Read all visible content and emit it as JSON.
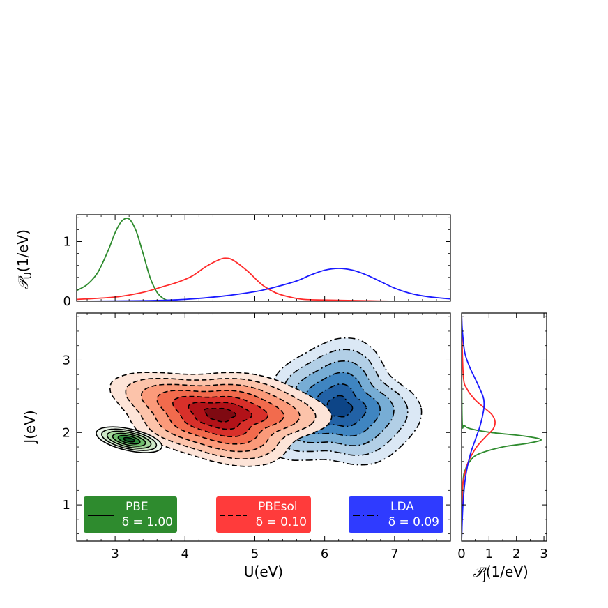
{
  "colors": {
    "PBE": "#2e8b2e",
    "PBEsol": "#ff2a2a",
    "LDA": "#1a1aff",
    "PBE_fill": [
      "#eef7ec",
      "#cfe9c8",
      "#a5d79c",
      "#6fbe6c",
      "#2f8f3e",
      "#0f5a24"
    ],
    "PBEsol_fill": [
      "#fde4d8",
      "#fcc3aa",
      "#fb9a7a",
      "#f26b4d",
      "#d8302a",
      "#b21218",
      "#7f0a12"
    ],
    "LDA_fill": [
      "#dbe8f5",
      "#b2cfe6",
      "#77add5",
      "#3f85c1",
      "#2262a6",
      "#0d4587"
    ]
  },
  "chart_data": [
    {
      "type": "line",
      "name": "top-marginal",
      "ylabel": "𝒫U(1/eV)",
      "ylabel_main": "𝒫",
      "ylabel_sub": "U",
      "ylabel_unit": "(1/eV)",
      "xlim": [
        2.45,
        7.8
      ],
      "ylim": [
        0,
        1.45
      ],
      "yticks": [
        0,
        1
      ],
      "ytick_labels": [
        "0",
        "1"
      ],
      "series": [
        {
          "name": "PBE",
          "color": "#2e8b2e",
          "x": [
            2.45,
            2.6,
            2.75,
            2.9,
            3.0,
            3.1,
            3.2,
            3.3,
            3.4,
            3.5,
            3.6,
            3.7,
            3.8,
            4.0,
            5.0,
            7.8
          ],
          "y": [
            0.18,
            0.28,
            0.48,
            0.85,
            1.15,
            1.35,
            1.38,
            1.18,
            0.8,
            0.4,
            0.15,
            0.04,
            0.01,
            0.0,
            0.0,
            0.0
          ]
        },
        {
          "name": "PBEsol",
          "color": "#ff2a2a",
          "x": [
            2.45,
            3.0,
            3.4,
            3.7,
            3.9,
            4.1,
            4.3,
            4.5,
            4.6,
            4.7,
            4.9,
            5.1,
            5.3,
            5.5,
            5.7,
            6.0,
            6.5,
            7.0,
            7.8
          ],
          "y": [
            0.03,
            0.07,
            0.15,
            0.25,
            0.32,
            0.42,
            0.58,
            0.7,
            0.72,
            0.68,
            0.5,
            0.28,
            0.14,
            0.07,
            0.03,
            0.02,
            0.01,
            0.0,
            0.0
          ]
        },
        {
          "name": "LDA",
          "color": "#1a1aff",
          "x": [
            2.45,
            3.5,
            4.0,
            4.5,
            5.0,
            5.3,
            5.6,
            5.8,
            6.0,
            6.2,
            6.4,
            6.6,
            6.8,
            7.0,
            7.2,
            7.4,
            7.6,
            7.8
          ],
          "y": [
            0.0,
            0.01,
            0.03,
            0.08,
            0.16,
            0.24,
            0.34,
            0.44,
            0.52,
            0.55,
            0.52,
            0.44,
            0.33,
            0.22,
            0.14,
            0.09,
            0.06,
            0.04
          ]
        }
      ]
    },
    {
      "type": "heatmap",
      "name": "joint-density-contours",
      "xlabel": "U(eV)",
      "ylabel": "J(eV)",
      "xlim": [
        2.45,
        7.8
      ],
      "ylim": [
        0.5,
        3.65
      ],
      "xticks": [
        3,
        4,
        5,
        6,
        7
      ],
      "xtick_labels": [
        "3",
        "4",
        "5",
        "6",
        "7"
      ],
      "yticks": [
        1,
        2,
        3
      ],
      "ytick_labels": [
        "1",
        "2",
        "3"
      ],
      "series": [
        {
          "name": "PBE",
          "linestyle": "solid",
          "center": [
            3.2,
            1.9
          ],
          "radii": [
            0.48,
            0.15
          ],
          "rotation_deg": -12,
          "levels": 6
        },
        {
          "name": "PBEsol",
          "linestyle": "dashed",
          "center": [
            4.5,
            2.25
          ],
          "radii": [
            1.5,
            0.62
          ],
          "rotation_deg": -6,
          "levels": 7
        },
        {
          "name": "LDA",
          "linestyle": "dashdot",
          "center": [
            6.2,
            2.35
          ],
          "radii": [
            1.1,
            0.85
          ],
          "rotation_deg": 0,
          "levels": 6
        }
      ],
      "legend": [
        {
          "name": "PBE",
          "label": "PBE",
          "delta": "δ = 1.00",
          "color": "#2e8b2e",
          "linestyle": "solid"
        },
        {
          "name": "PBEsol",
          "label": "PBEsol",
          "delta": "δ = 0.10",
          "color": "#ff3b3b",
          "linestyle": "dashed"
        },
        {
          "name": "LDA",
          "label": "LDA",
          "delta": "δ = 0.09",
          "color": "#2f3bff",
          "linestyle": "dashdot"
        }
      ]
    },
    {
      "type": "line",
      "name": "right-marginal",
      "xlabel": "𝒫J(1/eV)",
      "xlabel_main": "𝒫",
      "xlabel_sub": "J",
      "xlabel_unit": "(1/eV)",
      "xlim": [
        0,
        3.1
      ],
      "ylim": [
        0.5,
        3.65
      ],
      "xticks": [
        0,
        1,
        2,
        3
      ],
      "xtick_labels": [
        "0",
        "1",
        "2",
        "3"
      ],
      "series": [
        {
          "name": "PBE",
          "color": "#2e8b2e",
          "y": [
            0.5,
            1.3,
            1.5,
            1.6,
            1.7,
            1.8,
            1.85,
            1.9,
            1.95,
            2.0,
            2.05,
            2.1,
            2.2,
            3.65
          ],
          "x": [
            0.0,
            0.05,
            0.15,
            0.3,
            0.6,
            1.5,
            2.4,
            2.9,
            2.3,
            1.1,
            0.35,
            0.1,
            0.02,
            0.0
          ]
        },
        {
          "name": "PBEsol",
          "color": "#ff2a2a",
          "y": [
            0.5,
            1.2,
            1.4,
            1.6,
            1.8,
            1.95,
            2.05,
            2.15,
            2.25,
            2.35,
            2.45,
            2.6,
            2.8,
            3.65
          ],
          "x": [
            0.0,
            0.03,
            0.1,
            0.25,
            0.55,
            0.9,
            1.15,
            1.22,
            1.1,
            0.8,
            0.5,
            0.2,
            0.06,
            0.0
          ]
        },
        {
          "name": "LDA",
          "color": "#1a1aff",
          "y": [
            0.5,
            1.0,
            1.4,
            1.7,
            1.9,
            2.1,
            2.3,
            2.4,
            2.5,
            2.7,
            2.9,
            3.1,
            3.4,
            3.65
          ],
          "x": [
            0.0,
            0.05,
            0.15,
            0.32,
            0.5,
            0.68,
            0.8,
            0.82,
            0.78,
            0.55,
            0.3,
            0.12,
            0.03,
            0.0
          ]
        }
      ]
    }
  ]
}
